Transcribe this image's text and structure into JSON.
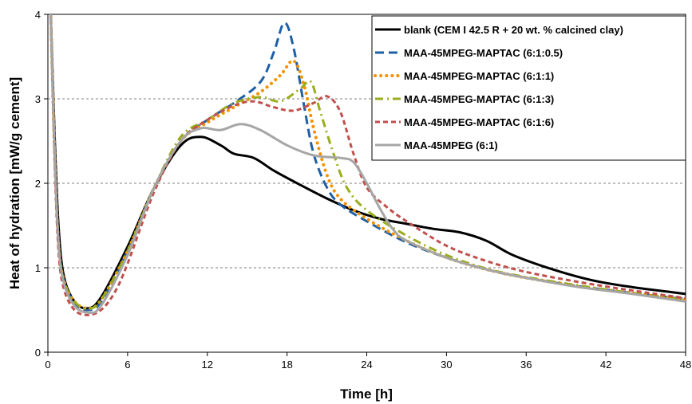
{
  "chart_data": {
    "type": "line",
    "xlabel": "Time [h]",
    "ylabel": "Heat of hydration [mW/g cement]",
    "xlim": [
      0,
      48
    ],
    "ylim": [
      0,
      4
    ],
    "xticks": [
      "0",
      "6",
      "12",
      "18",
      "24",
      "30",
      "36",
      "42",
      "48"
    ],
    "yticks": [
      "0",
      "1",
      "2",
      "3",
      "4"
    ],
    "grid": "horizontal dashed",
    "legend_position": "top-right",
    "series": [
      {
        "name": "blank (CEM I 42.5 R + 20 wt. % calcined clay)",
        "color": "#000000",
        "dash": "solid",
        "points": [
          [
            0.2,
            4.1
          ],
          [
            0.5,
            2.6
          ],
          [
            0.8,
            1.5
          ],
          [
            1.2,
            0.9
          ],
          [
            2,
            0.6
          ],
          [
            3,
            0.52
          ],
          [
            4,
            0.65
          ],
          [
            6,
            1.25
          ],
          [
            8,
            1.95
          ],
          [
            10,
            2.45
          ],
          [
            11.5,
            2.55
          ],
          [
            13,
            2.45
          ],
          [
            14,
            2.35
          ],
          [
            15.5,
            2.3
          ],
          [
            17,
            2.15
          ],
          [
            19,
            1.98
          ],
          [
            21,
            1.82
          ],
          [
            23,
            1.68
          ],
          [
            25,
            1.58
          ],
          [
            27,
            1.52
          ],
          [
            29,
            1.46
          ],
          [
            31,
            1.42
          ],
          [
            33,
            1.32
          ],
          [
            35,
            1.15
          ],
          [
            38,
            0.98
          ],
          [
            41,
            0.85
          ],
          [
            44,
            0.77
          ],
          [
            47,
            0.71
          ],
          [
            48,
            0.69
          ]
        ]
      },
      {
        "name": "MAA-45MPEG-MAPTAC (6:1:0.5)",
        "color": "#1f5fa6",
        "dash": "long-dash",
        "points": [
          [
            0.2,
            4.1
          ],
          [
            0.5,
            2.4
          ],
          [
            0.8,
            1.3
          ],
          [
            1.2,
            0.85
          ],
          [
            2,
            0.58
          ],
          [
            3,
            0.5
          ],
          [
            4,
            0.6
          ],
          [
            6,
            1.2
          ],
          [
            8,
            1.95
          ],
          [
            10,
            2.5
          ],
          [
            12,
            2.75
          ],
          [
            14,
            2.95
          ],
          [
            16,
            3.2
          ],
          [
            17,
            3.55
          ],
          [
            17.8,
            3.9
          ],
          [
            18.5,
            3.6
          ],
          [
            19.3,
            2.9
          ],
          [
            20,
            2.35
          ],
          [
            21,
            1.95
          ],
          [
            22,
            1.75
          ],
          [
            24,
            1.55
          ],
          [
            27,
            1.3
          ],
          [
            30,
            1.12
          ],
          [
            33,
            0.98
          ],
          [
            36,
            0.88
          ],
          [
            40,
            0.78
          ],
          [
            44,
            0.7
          ],
          [
            48,
            0.63
          ]
        ]
      },
      {
        "name": "MAA-45MPEG-MAPTAC (6:1:1)",
        "color": "#f39200",
        "dash": "dotted",
        "points": [
          [
            0.2,
            4.1
          ],
          [
            0.5,
            2.4
          ],
          [
            0.8,
            1.3
          ],
          [
            1.2,
            0.85
          ],
          [
            2,
            0.6
          ],
          [
            3,
            0.52
          ],
          [
            4,
            0.62
          ],
          [
            6,
            1.2
          ],
          [
            8,
            1.95
          ],
          [
            10,
            2.5
          ],
          [
            12,
            2.72
          ],
          [
            14,
            2.9
          ],
          [
            16,
            3.08
          ],
          [
            17.5,
            3.28
          ],
          [
            18.5,
            3.45
          ],
          [
            19.3,
            3.15
          ],
          [
            20,
            2.65
          ],
          [
            21,
            2.1
          ],
          [
            22,
            1.82
          ],
          [
            24,
            1.58
          ],
          [
            27,
            1.32
          ],
          [
            30,
            1.12
          ],
          [
            33,
            0.98
          ],
          [
            36,
            0.88
          ],
          [
            40,
            0.78
          ],
          [
            44,
            0.7
          ],
          [
            48,
            0.62
          ]
        ]
      },
      {
        "name": "MAA-45MPEG-MAPTAC (6:1:3)",
        "color": "#9bac1c",
        "dash": "dash-dot",
        "points": [
          [
            0.2,
            4.1
          ],
          [
            0.5,
            2.4
          ],
          [
            0.8,
            1.3
          ],
          [
            1.2,
            0.85
          ],
          [
            2,
            0.6
          ],
          [
            3,
            0.52
          ],
          [
            4,
            0.62
          ],
          [
            6,
            1.2
          ],
          [
            8,
            1.95
          ],
          [
            10,
            2.55
          ],
          [
            12,
            2.75
          ],
          [
            14,
            2.95
          ],
          [
            16,
            3.02
          ],
          [
            17.5,
            2.97
          ],
          [
            19,
            3.12
          ],
          [
            19.8,
            3.2
          ],
          [
            20.5,
            2.85
          ],
          [
            21.5,
            2.35
          ],
          [
            22.5,
            1.95
          ],
          [
            24,
            1.68
          ],
          [
            27,
            1.38
          ],
          [
            30,
            1.15
          ],
          [
            33,
            0.99
          ],
          [
            36,
            0.89
          ],
          [
            40,
            0.79
          ],
          [
            44,
            0.7
          ],
          [
            48,
            0.62
          ]
        ]
      },
      {
        "name": "MAA-45MPEG-MAPTAC (6:1:6)",
        "color": "#c0504d",
        "dash": "short-dash",
        "points": [
          [
            0.2,
            4.1
          ],
          [
            0.5,
            2.3
          ],
          [
            0.8,
            1.2
          ],
          [
            1.2,
            0.75
          ],
          [
            2,
            0.5
          ],
          [
            3,
            0.44
          ],
          [
            4,
            0.5
          ],
          [
            5,
            0.7
          ],
          [
            6,
            1.05
          ],
          [
            8,
            1.9
          ],
          [
            10,
            2.5
          ],
          [
            12,
            2.75
          ],
          [
            14,
            2.92
          ],
          [
            15.5,
            2.97
          ],
          [
            17,
            2.9
          ],
          [
            18.5,
            2.86
          ],
          [
            20,
            2.95
          ],
          [
            21,
            3.03
          ],
          [
            22,
            2.85
          ],
          [
            23,
            2.35
          ],
          [
            24,
            1.95
          ],
          [
            25.5,
            1.72
          ],
          [
            27,
            1.55
          ],
          [
            30,
            1.26
          ],
          [
            33,
            1.08
          ],
          [
            36,
            0.95
          ],
          [
            40,
            0.83
          ],
          [
            44,
            0.73
          ],
          [
            48,
            0.64
          ]
        ]
      },
      {
        "name": "MAA-45MPEG (6:1)",
        "color": "#a6a6a6",
        "dash": "solid",
        "points": [
          [
            0.2,
            4.1
          ],
          [
            0.5,
            2.4
          ],
          [
            0.8,
            1.3
          ],
          [
            1.2,
            0.82
          ],
          [
            2,
            0.55
          ],
          [
            3,
            0.47
          ],
          [
            4,
            0.55
          ],
          [
            6,
            1.15
          ],
          [
            8,
            1.95
          ],
          [
            10,
            2.5
          ],
          [
            11.5,
            2.65
          ],
          [
            13,
            2.63
          ],
          [
            14.5,
            2.7
          ],
          [
            16,
            2.63
          ],
          [
            18,
            2.45
          ],
          [
            20,
            2.33
          ],
          [
            22,
            2.3
          ],
          [
            23,
            2.25
          ],
          [
            24,
            2.0
          ],
          [
            25,
            1.7
          ],
          [
            26,
            1.45
          ],
          [
            27,
            1.32
          ],
          [
            30,
            1.12
          ],
          [
            33,
            0.98
          ],
          [
            36,
            0.88
          ],
          [
            40,
            0.77
          ],
          [
            44,
            0.69
          ],
          [
            48,
            0.6
          ]
        ]
      }
    ]
  }
}
